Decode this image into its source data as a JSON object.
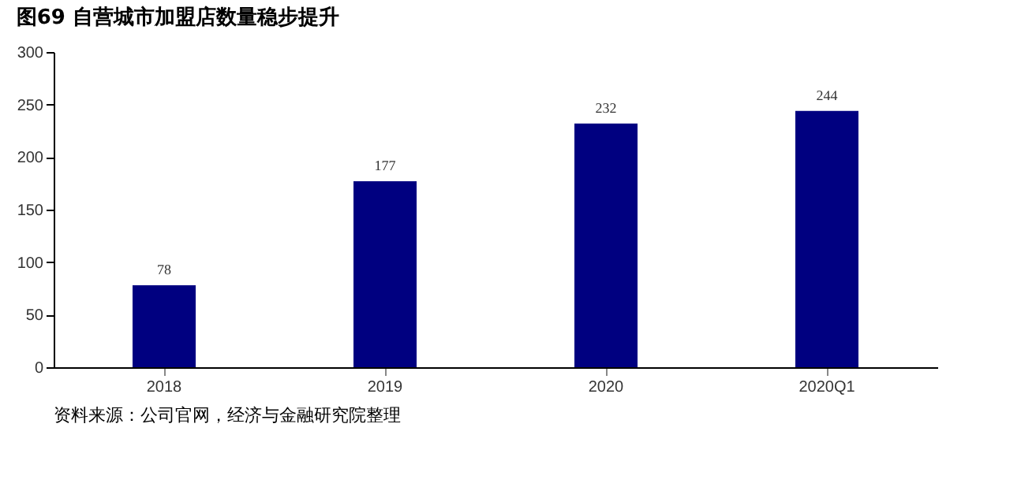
{
  "chart_data": {
    "type": "bar",
    "title": "图69 自营城市加盟店数量稳步提升",
    "categories": [
      "2018",
      "2019",
      "2020",
      "2020Q1"
    ],
    "values": [
      78,
      177,
      232,
      244
    ],
    "color": "#000080",
    "ylim": [
      0,
      300
    ],
    "yticks": [
      0,
      50,
      100,
      150,
      200,
      250,
      300
    ],
    "grid": false,
    "data_labels": true,
    "annotations": [
      "资料来源：公司官网，经济与金融研究院整理"
    ]
  }
}
